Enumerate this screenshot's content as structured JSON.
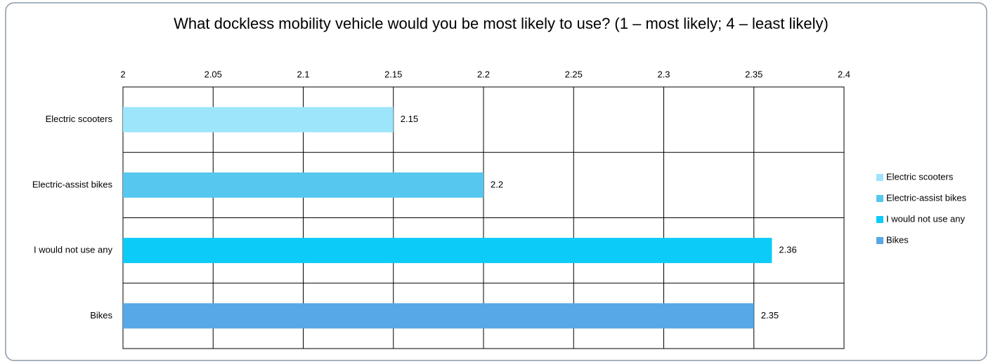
{
  "chart_data": {
    "type": "bar",
    "orientation": "horizontal",
    "title": "What dockless mobility vehicle would you be most likely to use? (1 – most likely; 4 – least likely)",
    "categories": [
      "Electric scooters",
      "Electric-assist bikes",
      "I would not use any",
      "Bikes"
    ],
    "values": [
      2.15,
      2.2,
      2.36,
      2.35
    ],
    "colors": [
      "#9de5fb",
      "#56c7ee",
      "#0ccbf9",
      "#56a8e6"
    ],
    "xlim": [
      2,
      2.4
    ],
    "xticks": [
      2,
      2.05,
      2.1,
      2.15,
      2.2,
      2.25,
      2.3,
      2.35,
      2.4
    ],
    "grid": true,
    "legend": "right"
  }
}
